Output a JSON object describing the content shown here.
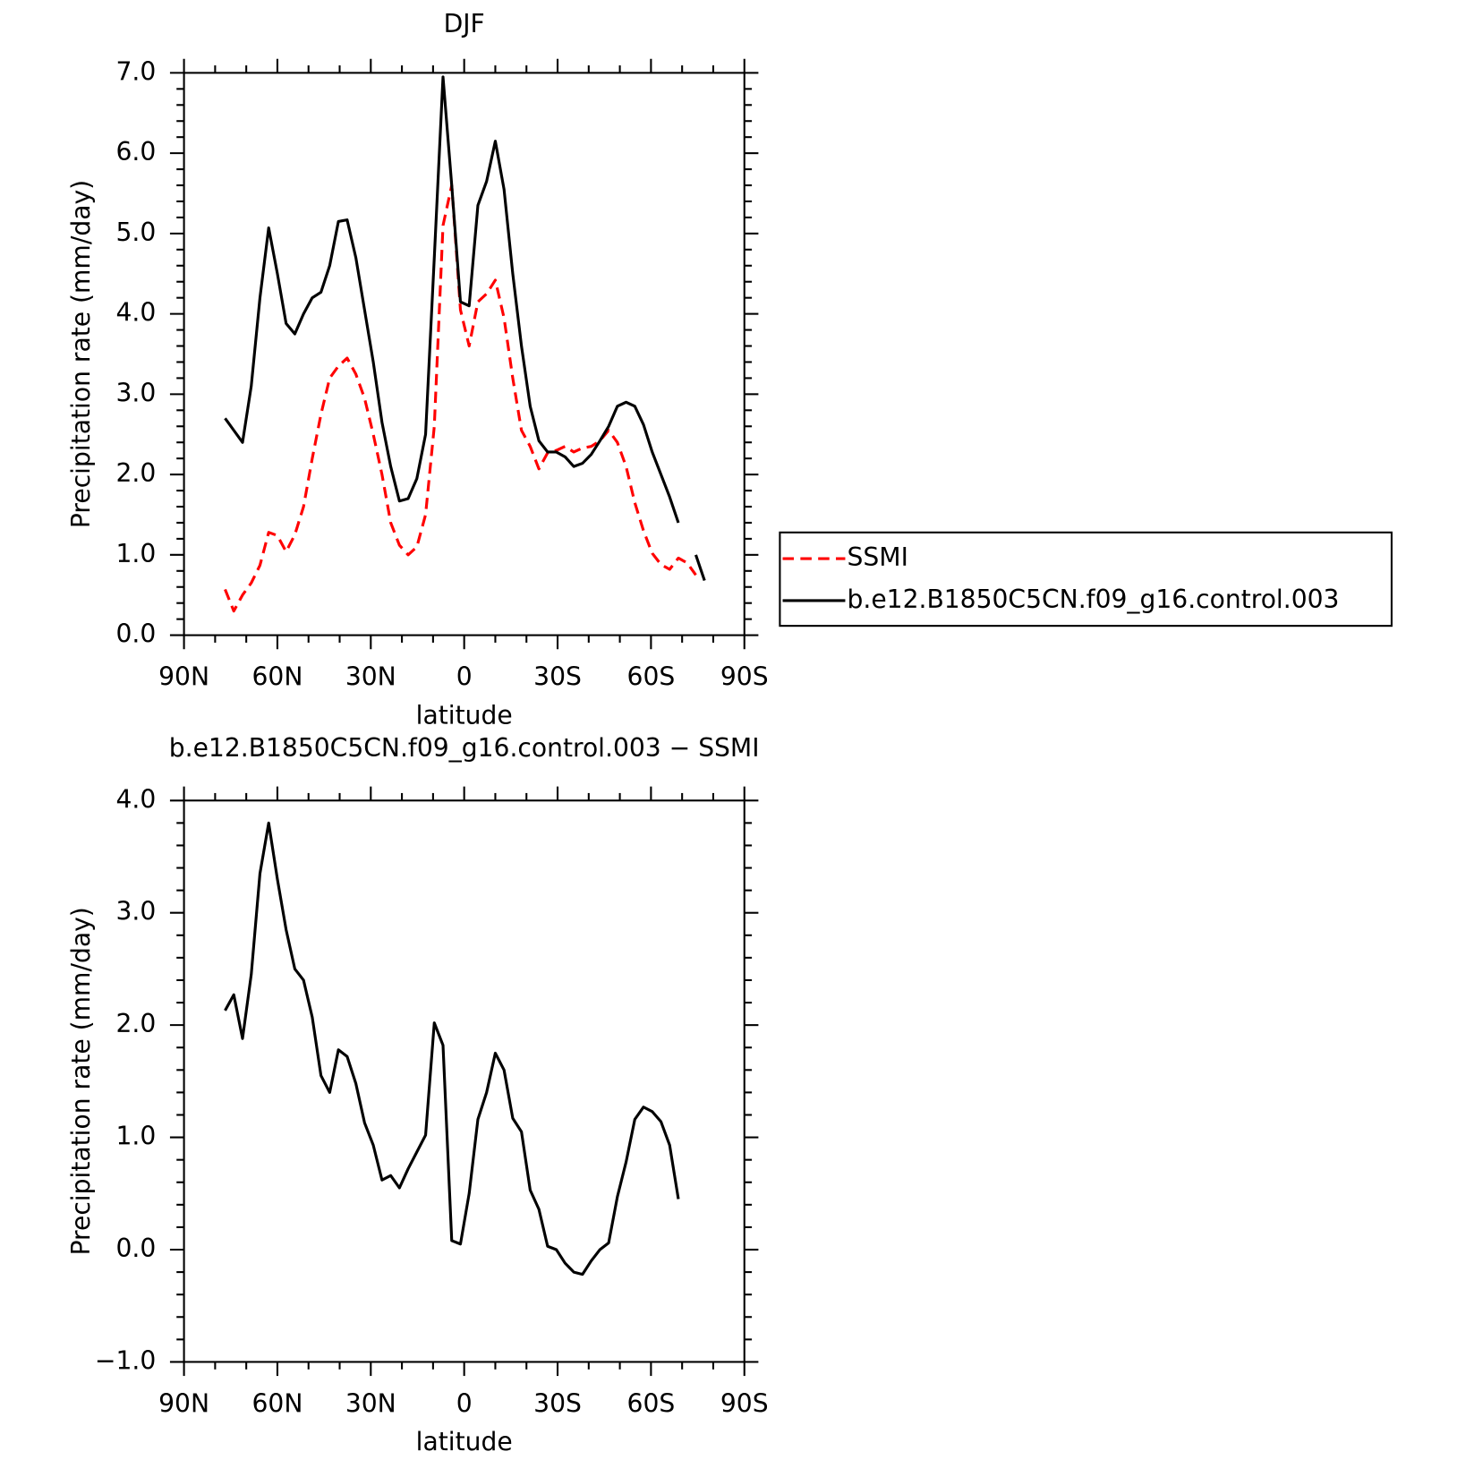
{
  "chart_data": [
    {
      "type": "line",
      "title": "DJF",
      "xlabel": "latitude",
      "ylabel": "Precipitation rate (mm/day)",
      "x": [
        76.8,
        74.0,
        71.2,
        68.4,
        65.6,
        62.8,
        60.0,
        57.2,
        54.4,
        51.6,
        48.8,
        46.0,
        43.2,
        40.4,
        37.6,
        34.8,
        32.0,
        29.2,
        26.4,
        23.6,
        20.8,
        18.0,
        15.2,
        12.4,
        9.6,
        6.8,
        4.0,
        1.2,
        -1.6,
        -4.4,
        -7.2,
        -10.0,
        -12.8,
        -15.6,
        -18.4,
        -21.2,
        -24.0,
        -26.8,
        -29.6,
        -32.4,
        -35.2,
        -38.0,
        -40.8,
        -43.6,
        -46.4,
        -49.2,
        -52.0,
        -54.8,
        -57.6,
        -60.4,
        -63.2,
        -66.0,
        -68.8,
        -71.6,
        -74.4,
        -77.2
      ],
      "series": [
        {
          "name": "SSMI",
          "color": "#ff0000",
          "dashed": true,
          "values": [
            0.57,
            0.3,
            0.5,
            0.65,
            0.87,
            1.28,
            1.24,
            1.04,
            1.25,
            1.6,
            2.2,
            2.75,
            3.2,
            3.35,
            3.45,
            3.25,
            2.95,
            2.5,
            2.0,
            1.4,
            1.12,
            1.0,
            1.1,
            1.5,
            2.6,
            5.1,
            5.6,
            4.05,
            3.6,
            4.15,
            4.25,
            4.42,
            3.95,
            3.2,
            2.55,
            2.35,
            2.07,
            2.27,
            2.3,
            2.35,
            2.28,
            2.33,
            2.35,
            2.42,
            2.55,
            2.4,
            2.1,
            1.65,
            1.3,
            1.02,
            0.88,
            0.82,
            0.96,
            0.9,
            0.75,
            null
          ]
        },
        {
          "name": "b.e12.B1850C5CN.f09_g16.control.003",
          "color": "#000000",
          "dashed": false,
          "values": [
            2.7,
            2.55,
            2.4,
            3.1,
            4.2,
            5.07,
            4.5,
            3.88,
            3.75,
            4.0,
            4.2,
            4.27,
            4.6,
            5.15,
            5.17,
            4.7,
            4.05,
            3.4,
            2.65,
            2.1,
            1.67,
            1.7,
            1.95,
            2.5,
            4.7,
            6.95,
            5.6,
            4.15,
            4.1,
            5.35,
            5.65,
            6.15,
            5.55,
            4.5,
            3.6,
            2.85,
            2.42,
            2.28,
            2.28,
            2.22,
            2.1,
            2.14,
            2.25,
            2.42,
            2.6,
            2.85,
            2.9,
            2.85,
            2.62,
            2.28,
            2.0,
            1.72,
            1.4,
            null,
            1.0,
            0.68
          ]
        }
      ],
      "xlim": [
        90,
        -90
      ],
      "xticks": [
        {
          "value": 90,
          "label": "90N"
        },
        {
          "value": 60,
          "label": "60N"
        },
        {
          "value": 30,
          "label": "30N"
        },
        0,
        {
          "value": -30,
          "label": "30S"
        },
        {
          "value": -60,
          "label": "60S"
        },
        {
          "value": -90,
          "label": "90S"
        }
      ],
      "ylim": [
        0,
        7
      ],
      "yticks": [
        {
          "value": 0,
          "label": "0.0"
        },
        {
          "value": 1,
          "label": "1.0"
        },
        {
          "value": 2,
          "label": "2.0"
        },
        {
          "value": 3,
          "label": "3.0"
        },
        {
          "value": 4,
          "label": "4.0"
        },
        {
          "value": 5,
          "label": "5.0"
        },
        {
          "value": 6,
          "label": "6.0"
        },
        {
          "value": 7,
          "label": "7.0"
        }
      ],
      "legend": "right"
    },
    {
      "type": "line",
      "title": "b.e12.B1850C5CN.f09_g16.control.003 − SSMI",
      "xlabel": "latitude",
      "ylabel": "Precipitation rate (mm/day)",
      "x": [
        76.8,
        74.0,
        71.2,
        68.4,
        65.6,
        62.8,
        60.0,
        57.2,
        54.4,
        51.6,
        48.8,
        46.0,
        43.2,
        40.4,
        37.6,
        34.8,
        32.0,
        29.2,
        26.4,
        23.6,
        20.8,
        18.0,
        15.2,
        12.4,
        9.6,
        6.8,
        4.0,
        1.2,
        -1.6,
        -4.4,
        -7.2,
        -10.0,
        -12.8,
        -15.6,
        -18.4,
        -21.2,
        -24.0,
        -26.8,
        -29.6,
        -32.4,
        -35.2,
        -38.0,
        -40.8,
        -43.6,
        -46.4,
        -49.2,
        -52.0,
        -54.8,
        -57.6,
        -60.4,
        -63.2,
        -66.0,
        -68.8,
        -71.6,
        -74.4,
        -77.2
      ],
      "series": [
        {
          "color": "#000000",
          "dashed": false,
          "values": [
            2.13,
            2.27,
            1.88,
            2.45,
            3.35,
            3.8,
            3.3,
            2.85,
            2.5,
            2.4,
            2.07,
            1.55,
            1.4,
            1.78,
            1.72,
            1.48,
            1.13,
            0.93,
            0.62,
            0.66,
            0.55,
            0.72,
            0.87,
            1.02,
            2.02,
            1.82,
            0.08,
            0.05,
            0.5,
            1.16,
            1.4,
            1.75,
            1.6,
            1.17,
            1.05,
            0.53,
            0.36,
            0.03,
            0.0,
            -0.12,
            -0.2,
            -0.22,
            -0.1,
            0.0,
            0.06,
            0.47,
            0.78,
            1.16,
            1.27,
            1.23,
            1.14,
            0.93,
            0.45,
            null,
            null,
            null
          ]
        }
      ],
      "xlim": [
        90,
        -90
      ],
      "xticks": [
        {
          "value": 90,
          "label": "90N"
        },
        {
          "value": 60,
          "label": "60N"
        },
        {
          "value": 30,
          "label": "30N"
        },
        0,
        {
          "value": -30,
          "label": "30S"
        },
        {
          "value": -60,
          "label": "60S"
        },
        {
          "value": -90,
          "label": "90S"
        }
      ],
      "ylim": [
        -1,
        4
      ],
      "yticks": [
        {
          "value": -1,
          "label": "−1.0"
        },
        {
          "value": 0,
          "label": "0.0"
        },
        {
          "value": 1,
          "label": "1.0"
        },
        {
          "value": 2,
          "label": "2.0"
        },
        {
          "value": 3,
          "label": "3.0"
        },
        {
          "value": 4,
          "label": "4.0"
        }
      ]
    }
  ]
}
